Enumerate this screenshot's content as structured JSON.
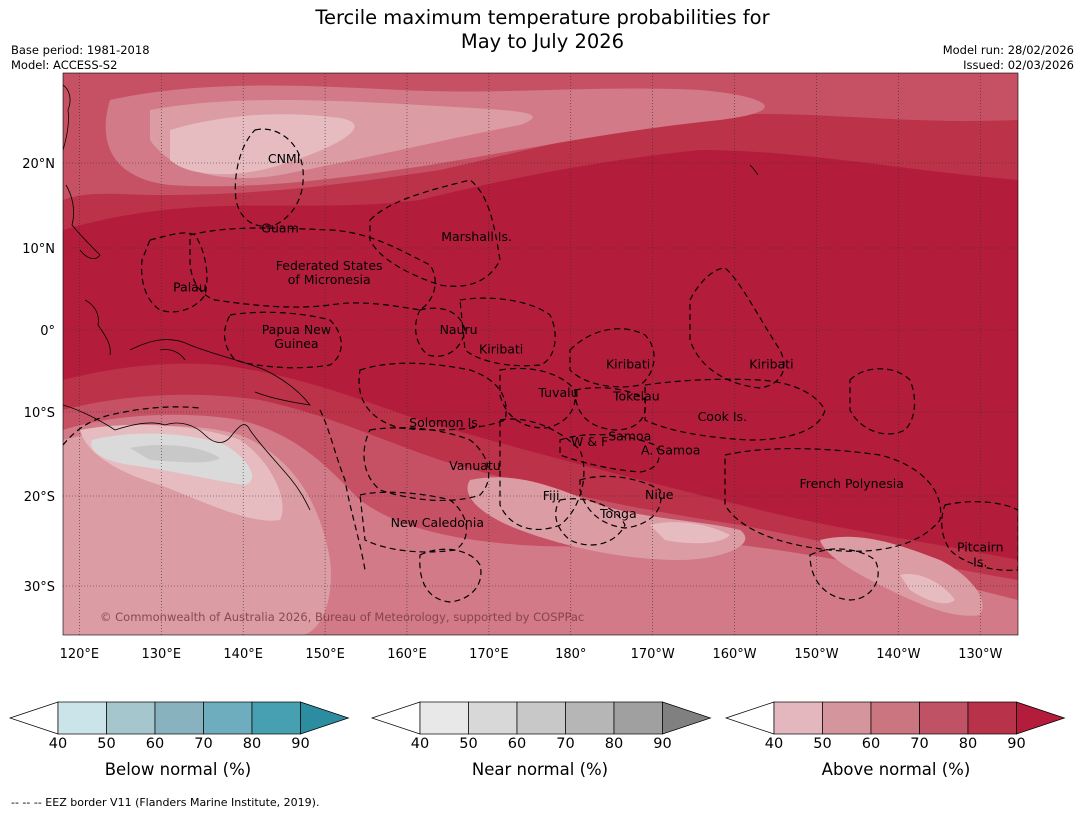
{
  "title_line1": "Tercile maximum temperature probabilities for",
  "title_line2": "May to July 2026",
  "meta_left": [
    "Base period: 1981-2018",
    "Model: ACCESS-S2"
  ],
  "meta_right": [
    "Model run: 28/02/2026",
    "Issued: 02/03/2026"
  ],
  "map": {
    "lat_ticks": [
      {
        "label": "20°N",
        "lat": 20
      },
      {
        "label": "10°N",
        "lat": 10
      },
      {
        "label": "0°",
        "lat": 0
      },
      {
        "label": "10°S",
        "lat": -10
      },
      {
        "label": "20°S",
        "lat": -20
      },
      {
        "label": "30°S",
        "lat": -30
      }
    ],
    "lon_ticks": [
      {
        "label": "120°E",
        "lon": 120
      },
      {
        "label": "130°E",
        "lon": 130
      },
      {
        "label": "140°E",
        "lon": 140
      },
      {
        "label": "150°E",
        "lon": 150
      },
      {
        "label": "160°E",
        "lon": 160
      },
      {
        "label": "170°E",
        "lon": 170
      },
      {
        "label": "180°",
        "lon": 180
      },
      {
        "label": "170°W",
        "lon": 190
      },
      {
        "label": "160°W",
        "lon": 200
      },
      {
        "label": "150°W",
        "lon": 210
      },
      {
        "label": "140°W",
        "lon": 220
      },
      {
        "label": "130°W",
        "lon": 230
      }
    ],
    "region_labels": [
      {
        "text": "CNMI",
        "lon": 145,
        "lat": 20.5
      },
      {
        "text": "Guam",
        "lon": 144.5,
        "lat": 12.3
      },
      {
        "text": "Marshall Is.",
        "lon": 168.5,
        "lat": 11.3
      },
      {
        "text": "Federated States",
        "lon": 150.5,
        "lat": 7.8
      },
      {
        "text": "of Micronesia",
        "lon": 150.5,
        "lat": 6.1
      },
      {
        "text": "Palau",
        "lon": 133.5,
        "lat": 5.2
      },
      {
        "text": "Papua New",
        "lon": 146.5,
        "lat": 0
      },
      {
        "text": "Guinea",
        "lon": 146.5,
        "lat": -1.7
      },
      {
        "text": "Nauru",
        "lon": 166.3,
        "lat": 0
      },
      {
        "text": "Kiribati",
        "lon": 171.5,
        "lat": -2.4
      },
      {
        "text": "Kiribati",
        "lon": 187,
        "lat": -4.2
      },
      {
        "text": "Kiribati",
        "lon": 204.5,
        "lat": -4.2
      },
      {
        "text": "Tuvalu",
        "lon": 178.5,
        "lat": -7.7
      },
      {
        "text": "Tokelau",
        "lon": 188,
        "lat": -8.1
      },
      {
        "text": "Cook Is.",
        "lon": 198.5,
        "lat": -10.6
      },
      {
        "text": "Solomon Is.",
        "lon": 164.7,
        "lat": -11.3
      },
      {
        "text": "W & F",
        "lon": 182.3,
        "lat": -13.6
      },
      {
        "text": "Samoa",
        "lon": 187.2,
        "lat": -12.9
      },
      {
        "text": "A. Samoa",
        "lon": 192.2,
        "lat": -14.6
      },
      {
        "text": "Vanuatu",
        "lon": 168.3,
        "lat": -16.4
      },
      {
        "text": "Fiji",
        "lon": 177.6,
        "lat": -20
      },
      {
        "text": "Niue",
        "lon": 190.8,
        "lat": -19.9
      },
      {
        "text": "French Polynesia",
        "lon": 214.3,
        "lat": -18.6
      },
      {
        "text": "Tonga",
        "lon": 185.8,
        "lat": -22
      },
      {
        "text": "New Caledonia",
        "lon": 163.7,
        "lat": -23
      },
      {
        "text": "Pitcairn",
        "lon": 230,
        "lat": -25.7
      },
      {
        "text": "Is.",
        "lon": 230,
        "lat": -27.4
      }
    ],
    "copyright": "© Commonwealth of Australia 2026, Bureau of Meteorology, supported by COSPPac",
    "colors": {
      "above_90": "#b31d3b",
      "above_80": "#bb3249",
      "above_70": "#c65164",
      "above_60": "#d27a87",
      "above_50": "#dc9ca4",
      "above_40": "#e6bcc1",
      "near_50": "#dadada",
      "near_60": "#c8c8c8"
    }
  },
  "colorbars": [
    {
      "title": "Below normal (%)",
      "ticks": [
        "40",
        "50",
        "60",
        "70",
        "80",
        "90"
      ],
      "colors": [
        "#ffffff",
        "#cbe4ea",
        "#a6c6cd",
        "#88b3be",
        "#6eadbd",
        "#46a0b1",
        "#2c8da0"
      ]
    },
    {
      "title": "Near normal (%)",
      "ticks": [
        "40",
        "50",
        "60",
        "70",
        "80",
        "90"
      ],
      "colors": [
        "#ffffff",
        "#e8e8e8",
        "#d8d8d8",
        "#c8c8c8",
        "#b6b6b6",
        "#a0a0a0",
        "#808080"
      ]
    },
    {
      "title": "Above normal (%)",
      "ticks": [
        "40",
        "50",
        "60",
        "70",
        "80",
        "90"
      ],
      "colors": [
        "#ffffff",
        "#e3b7bd",
        "#d5959d",
        "#ca7580",
        "#c05266",
        "#b8334a",
        "#b31d3b"
      ]
    }
  ],
  "footnote": "--  --  -- EEZ border V11 (Flanders Marine Institute, 2019)."
}
